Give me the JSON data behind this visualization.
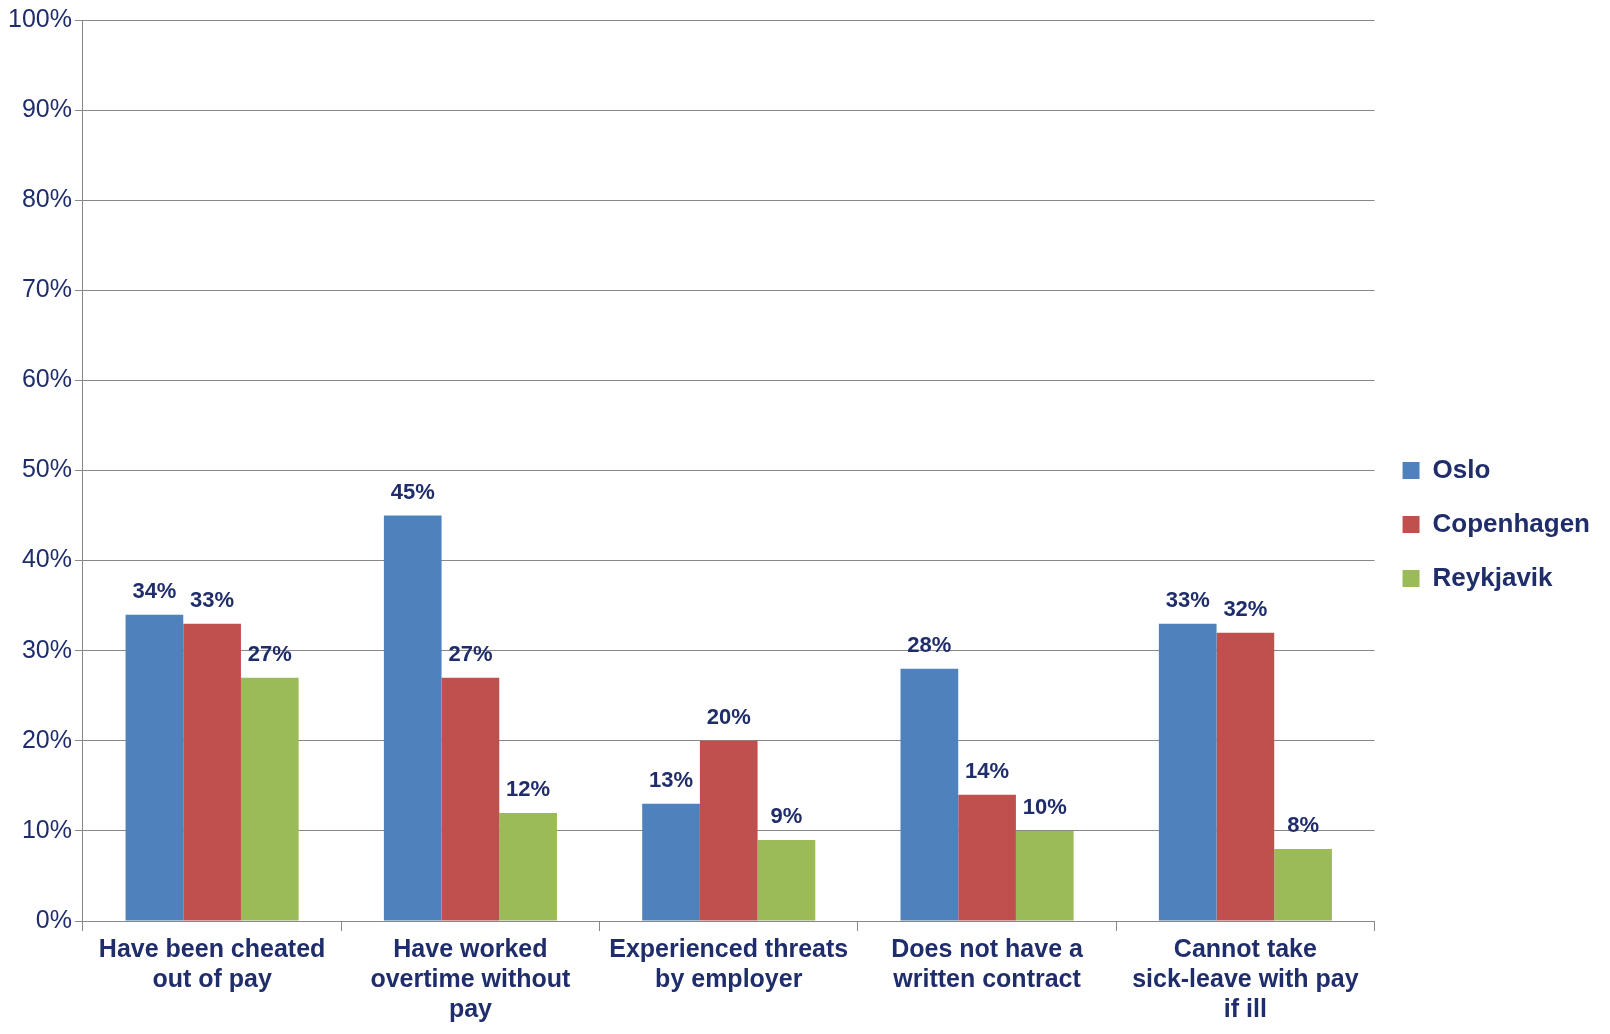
{
  "chart_data": {
    "type": "bar",
    "categories": [
      "Have been cheated out of pay",
      "Have worked overtime without pay",
      "Experienced threats by employer",
      "Does not have a written contract",
      "Cannot take sick-leave with pay if ill"
    ],
    "series": [
      {
        "name": "Oslo",
        "color": "#4f81bd",
        "values": [
          34,
          45,
          13,
          28,
          33
        ],
        "value_labels": [
          "34%",
          "45%",
          "13%",
          "28%",
          "33%"
        ]
      },
      {
        "name": "Copenhagen",
        "color": "#c0504d",
        "values": [
          33,
          27,
          20,
          14,
          32
        ],
        "value_labels": [
          "33%",
          "27%",
          "20%",
          "14%",
          "32%"
        ]
      },
      {
        "name": "Reykjavik",
        "color": "#9bbb59",
        "values": [
          27,
          12,
          9,
          10,
          8
        ],
        "value_labels": [
          "27%",
          "12%",
          "9%",
          "10%",
          "8%"
        ]
      }
    ],
    "ylim": [
      0,
      100
    ],
    "yticks": [
      {
        "value": 0,
        "label": "0%"
      },
      {
        "value": 10,
        "label": "10%"
      },
      {
        "value": 20,
        "label": "20%"
      },
      {
        "value": 30,
        "label": "30%"
      },
      {
        "value": 40,
        "label": "40%"
      },
      {
        "value": 50,
        "label": "50%"
      },
      {
        "value": 60,
        "label": "60%"
      },
      {
        "value": 70,
        "label": "70%"
      },
      {
        "value": 80,
        "label": "80%"
      },
      {
        "value": 90,
        "label": "90%"
      },
      {
        "value": 100,
        "label": "100%"
      }
    ],
    "grid": "y",
    "legend": "right"
  }
}
